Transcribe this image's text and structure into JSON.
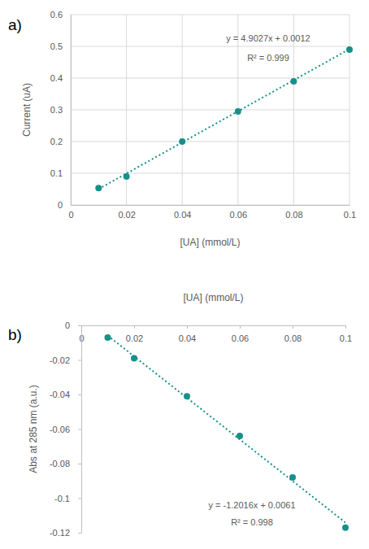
{
  "chart_data": [
    {
      "type": "scatter",
      "title": "a)",
      "x_label": "[UA] (mmol/L)",
      "y_label": "Current (uA)",
      "x": [
        0.01,
        0.02,
        0.04,
        0.06,
        0.08,
        0.1
      ],
      "series": [
        {
          "values": [
            0.053,
            0.09,
            0.2,
            0.295,
            0.39,
            0.49
          ],
          "color": "#16908a",
          "marker": "circle"
        },
        {
          "type": "line",
          "line_style": "dotted",
          "color": "#16908a",
          "x": [
            0.01,
            0.1
          ],
          "values": [
            0.0502,
            0.4915
          ]
        }
      ],
      "annotations": [
        "y = 4.9027x + 0.0012",
        "R² = 0.999"
      ],
      "xlim": [
        0,
        0.1
      ],
      "xticks": [
        0,
        0.02,
        0.04,
        0.06,
        0.08,
        0.1
      ],
      "ylim": [
        0,
        0.6
      ],
      "yticks": [
        0,
        0.1,
        0.2,
        0.3,
        0.4,
        0.5,
        0.6
      ],
      "grid": true
    },
    {
      "type": "scatter",
      "title": "b)",
      "x_label": "[UA] (mmol/L)",
      "y_label": "Abs at 285 nm (a.u.)",
      "x": [
        0.01,
        0.02,
        0.04,
        0.06,
        0.08,
        0.1
      ],
      "series": [
        {
          "values": [
            -0.007,
            -0.019,
            -0.041,
            -0.064,
            -0.088,
            -0.117
          ],
          "color": "#16908a",
          "marker": "circle"
        },
        {
          "type": "line",
          "line_style": "dotted",
          "color": "#16908a",
          "x": [
            0.01,
            0.1
          ],
          "values": [
            -0.0059,
            -0.1141
          ]
        }
      ],
      "annotations": [
        "y = -1.2016x + 0.0061",
        "R² = 0.998"
      ],
      "xlim": [
        0,
        0.1
      ],
      "xticks": [
        0,
        0.02,
        0.04,
        0.06,
        0.08,
        0.1
      ],
      "ylim": [
        -0.12,
        0
      ],
      "yticks": [
        0,
        -0.02,
        -0.04,
        -0.06,
        -0.08,
        -0.1,
        -0.12
      ],
      "grid": false
    }
  ]
}
